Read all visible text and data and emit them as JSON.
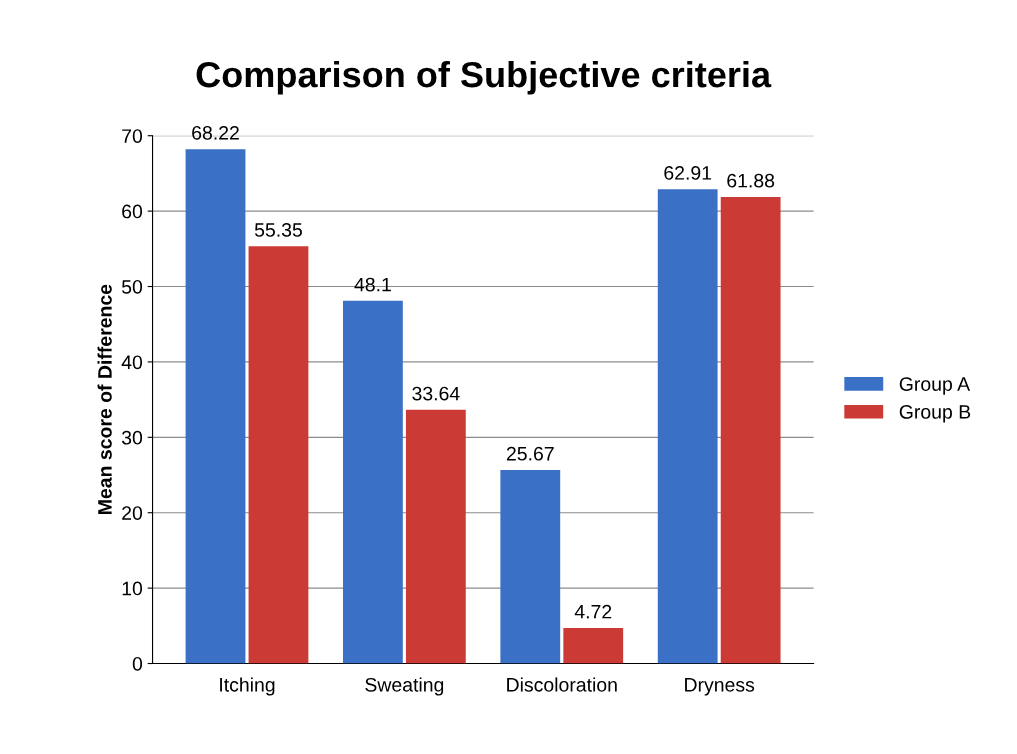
{
  "chart_data": {
    "type": "bar",
    "title": "Comparison of Subjective criteria",
    "ylabel": "Mean score of Difference",
    "categories": [
      "Itching",
      "Sweating",
      "Discoloration",
      "Dryness"
    ],
    "series": [
      {
        "name": "Group A",
        "color": "#3a70c6",
        "values": [
          68.22,
          48.1,
          25.67,
          62.91
        ]
      },
      {
        "name": "Group B",
        "color": "#cc3a35",
        "values": [
          55.35,
          33.64,
          4.72,
          61.88
        ]
      }
    ],
    "ylim": [
      0,
      70
    ],
    "yticks": [
      0,
      10,
      20,
      30,
      40,
      50,
      60,
      70
    ],
    "grid": "y",
    "legend": "right",
    "data_labels": true
  }
}
